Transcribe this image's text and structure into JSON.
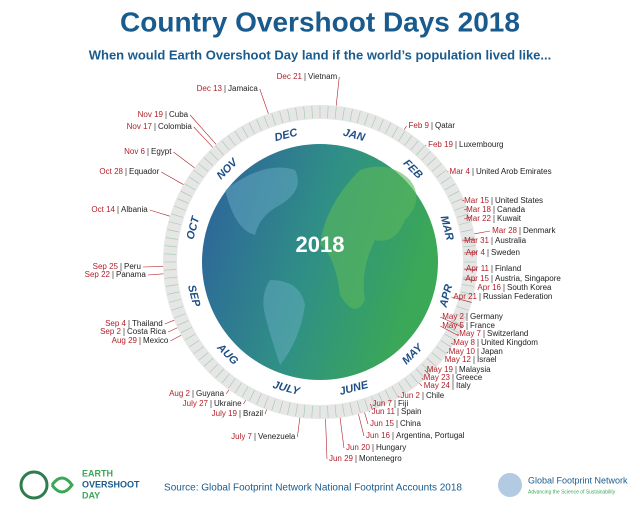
{
  "title": "Country Overshoot Days 2018",
  "subtitle": "When would Earth Overshoot Day  land if the world’s population lived like...",
  "year": "2018",
  "months": [
    "JAN",
    "FEB",
    "MAR",
    "APR",
    "MAY",
    "JUNE",
    "JULY",
    "AUG",
    "SEP",
    "OCT",
    "NOV",
    "DEC"
  ],
  "countries": [
    {
      "date": "Dec 21",
      "name": "Vietnam"
    },
    {
      "date": "Dec 13",
      "name": "Jamaica"
    },
    {
      "date": "Nov 19",
      "name": "Cuba"
    },
    {
      "date": "Nov 17",
      "name": "Colombia"
    },
    {
      "date": "Nov 6",
      "name": "Egypt"
    },
    {
      "date": "Oct 28",
      "name": "Equador"
    },
    {
      "date": "Oct 14",
      "name": "Albania"
    },
    {
      "date": "Sep 25",
      "name": "Peru"
    },
    {
      "date": "Sep 22",
      "name": "Panama"
    },
    {
      "date": "Sep 4",
      "name": "Thailand"
    },
    {
      "date": "Sep 2",
      "name": "Costa Rica"
    },
    {
      "date": "Aug 29",
      "name": "Mexico"
    },
    {
      "date": "Aug 2",
      "name": "Guyana"
    },
    {
      "date": "July 27",
      "name": "Ukraine"
    },
    {
      "date": "July 19",
      "name": "Brazil"
    },
    {
      "date": "July 7",
      "name": "Venezuela"
    },
    {
      "date": "Jun 29",
      "name": "Montenegro"
    },
    {
      "date": "Jun 20",
      "name": "Hungary"
    },
    {
      "date": "Jun 16",
      "name": "Argentina, Portugal"
    },
    {
      "date": "Jun 15",
      "name": "China"
    },
    {
      "date": "Jun 11",
      "name": "Spain"
    },
    {
      "date": "Jun 7",
      "name": "Fiji"
    },
    {
      "date": "Jun 2",
      "name": "Chile"
    },
    {
      "date": "May 24",
      "name": "Italy"
    },
    {
      "date": "May 23",
      "name": "Greece"
    },
    {
      "date": "May 19",
      "name": "Malaysia"
    },
    {
      "date": "May 12",
      "name": "Israel"
    },
    {
      "date": "May 10",
      "name": "Japan"
    },
    {
      "date": "May 8",
      "name": "United Kingdom"
    },
    {
      "date": "May 7",
      "name": "Switzerland"
    },
    {
      "date": "May 5",
      "name": "France"
    },
    {
      "date": "May 2",
      "name": "Germany"
    },
    {
      "date": "Apr 21",
      "name": "Russian Federation"
    },
    {
      "date": "Apr 16",
      "name": "South Korea"
    },
    {
      "date": "Apr 15",
      "name": "Austria, Singapore"
    },
    {
      "date": "Apr 11",
      "name": "Finland"
    },
    {
      "date": "Apr 4",
      "name": "Sweden"
    },
    {
      "date": "Mar 31",
      "name": "Australia"
    },
    {
      "date": "Mar 28",
      "name": "Denmark"
    },
    {
      "date": "Mar 22",
      "name": "Kuwait"
    },
    {
      "date": "Mar 18",
      "name": "Canada"
    },
    {
      "date": "Mar 15",
      "name": "United States"
    },
    {
      "date": "Mar 4",
      "name": "United Arob Emirates"
    },
    {
      "date": "Feb 19",
      "name": "Luxembourg"
    },
    {
      "date": "Feb 9",
      "name": "Qatar"
    }
  ],
  "footer": {
    "logo": [
      "EARTH",
      "OVERSHOOT",
      "DAY"
    ],
    "source": "Source: Global Footprint Network National Footprint Accounts 2018",
    "org": "Global Footprint Network",
    "tagline": "Advancing the Science of Sustainability"
  }
}
